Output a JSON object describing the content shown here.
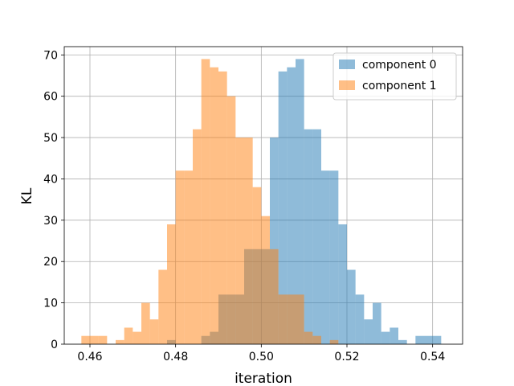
{
  "chart_data": {
    "type": "bar",
    "title": "",
    "xlabel": "iteration",
    "ylabel": "KL",
    "xlim": [
      0.454,
      0.547
    ],
    "ylim": [
      0,
      72
    ],
    "xticks": [
      "0.46",
      "0.48",
      "0.50",
      "0.52",
      "0.54"
    ],
    "xtick_values": [
      0.46,
      0.48,
      0.5,
      0.52,
      0.54
    ],
    "yticks": [
      "0",
      "10",
      "20",
      "30",
      "40",
      "50",
      "60",
      "70"
    ],
    "ytick_values": [
      0,
      10,
      20,
      30,
      40,
      50,
      60,
      70
    ],
    "grid": true,
    "legend_position": "upper-right",
    "series": [
      {
        "name": "component 0",
        "color": "#1f77b4",
        "alpha": 0.5,
        "bin_width": 0.002,
        "bins": [
          {
            "x0": 0.478,
            "count": 1
          },
          {
            "x0": 0.486,
            "count": 2
          },
          {
            "x0": 0.488,
            "count": 3
          },
          {
            "x0": 0.49,
            "count": 12
          },
          {
            "x0": 0.492,
            "count": 12
          },
          {
            "x0": 0.494,
            "count": 12
          },
          {
            "x0": 0.496,
            "count": 23
          },
          {
            "x0": 0.498,
            "count": 23
          },
          {
            "x0": 0.5,
            "count": 23
          },
          {
            "x0": 0.502,
            "count": 50
          },
          {
            "x0": 0.504,
            "count": 66
          },
          {
            "x0": 0.506,
            "count": 67
          },
          {
            "x0": 0.508,
            "count": 69
          },
          {
            "x0": 0.51,
            "count": 52
          },
          {
            "x0": 0.512,
            "count": 52
          },
          {
            "x0": 0.514,
            "count": 42
          },
          {
            "x0": 0.516,
            "count": 42
          },
          {
            "x0": 0.518,
            "count": 29
          },
          {
            "x0": 0.52,
            "count": 18
          },
          {
            "x0": 0.522,
            "count": 12
          },
          {
            "x0": 0.524,
            "count": 6
          },
          {
            "x0": 0.526,
            "count": 10
          },
          {
            "x0": 0.528,
            "count": 3
          },
          {
            "x0": 0.53,
            "count": 4
          },
          {
            "x0": 0.532,
            "count": 1
          },
          {
            "x0": 0.536,
            "count": 2
          },
          {
            "x0": 0.538,
            "count": 2
          },
          {
            "x0": 0.54,
            "count": 2
          }
        ]
      },
      {
        "name": "component 1",
        "color": "#ff7f0e",
        "alpha": 0.5,
        "bin_width": 0.002,
        "bins": [
          {
            "x0": 0.458,
            "count": 2
          },
          {
            "x0": 0.46,
            "count": 2
          },
          {
            "x0": 0.462,
            "count": 2
          },
          {
            "x0": 0.466,
            "count": 1
          },
          {
            "x0": 0.468,
            "count": 4
          },
          {
            "x0": 0.47,
            "count": 3
          },
          {
            "x0": 0.472,
            "count": 10
          },
          {
            "x0": 0.474,
            "count": 6
          },
          {
            "x0": 0.476,
            "count": 18
          },
          {
            "x0": 0.478,
            "count": 29
          },
          {
            "x0": 0.48,
            "count": 42
          },
          {
            "x0": 0.482,
            "count": 42
          },
          {
            "x0": 0.484,
            "count": 52
          },
          {
            "x0": 0.486,
            "count": 69
          },
          {
            "x0": 0.488,
            "count": 67
          },
          {
            "x0": 0.49,
            "count": 66
          },
          {
            "x0": 0.492,
            "count": 60
          },
          {
            "x0": 0.494,
            "count": 50
          },
          {
            "x0": 0.496,
            "count": 50
          },
          {
            "x0": 0.498,
            "count": 38
          },
          {
            "x0": 0.5,
            "count": 31
          },
          {
            "x0": 0.502,
            "count": 23
          },
          {
            "x0": 0.504,
            "count": 12
          },
          {
            "x0": 0.506,
            "count": 12
          },
          {
            "x0": 0.508,
            "count": 12
          },
          {
            "x0": 0.51,
            "count": 3
          },
          {
            "x0": 0.512,
            "count": 2
          },
          {
            "x0": 0.516,
            "count": 1
          }
        ]
      }
    ]
  }
}
